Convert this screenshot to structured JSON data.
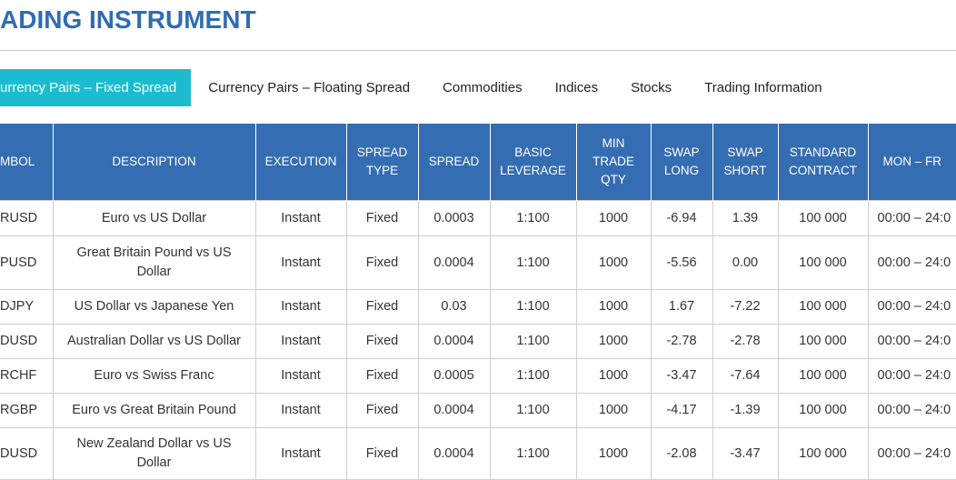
{
  "header": {
    "title": "ADING INSTRUMENT"
  },
  "tabs": [
    "urrency Pairs – Fixed Spread",
    "Currency Pairs – Floating Spread",
    "Commodities",
    "Indices",
    "Stocks",
    "Trading Information"
  ],
  "table": {
    "columns": [
      "MBOL",
      "DESCRIPTION",
      "EXECUTION",
      "SPREAD TYPE",
      "SPREAD",
      "BASIC LEVERAGE",
      "MIN TRADE QTY",
      "SWAP LONG",
      "SWAP SHORT",
      "STANDARD CONTRACT",
      "MON – FR"
    ],
    "rows": [
      [
        "RUSD",
        "Euro vs US Dollar",
        "Instant",
        "Fixed",
        "0.0003",
        "1:100",
        "1000",
        "-6.94",
        "1.39",
        "100 000",
        "00:00 – 24:0"
      ],
      [
        "PUSD",
        "Great Britain Pound vs US Dollar",
        "Instant",
        "Fixed",
        "0.0004",
        "1:100",
        "1000",
        "-5.56",
        "0.00",
        "100 000",
        "00:00 – 24:0"
      ],
      [
        "DJPY",
        "US Dollar vs Japanese Yen",
        "Instant",
        "Fixed",
        "0.03",
        "1:100",
        "1000",
        "1.67",
        "-7.22",
        "100 000",
        "00:00 – 24:0"
      ],
      [
        "DUSD",
        "Australian Dollar vs US Dollar",
        "Instant",
        "Fixed",
        "0.0004",
        "1:100",
        "1000",
        "-2.78",
        "-2.78",
        "100 000",
        "00:00 – 24:0"
      ],
      [
        "RCHF",
        "Euro vs Swiss Franc",
        "Instant",
        "Fixed",
        "0.0005",
        "1:100",
        "1000",
        "-3.47",
        "-7.64",
        "100 000",
        "00:00 – 24:0"
      ],
      [
        "RGBP",
        "Euro vs Great Britain Pound",
        "Instant",
        "Fixed",
        "0.0004",
        "1:100",
        "1000",
        "-4.17",
        "-1.39",
        "100 000",
        "00:00 – 24:0"
      ],
      [
        "DUSD",
        "New Zealand Dollar vs US Dollar",
        "Instant",
        "Fixed",
        "0.0004",
        "1:100",
        "1000",
        "-2.08",
        "-3.47",
        "100 000",
        "00:00 – 24:0"
      ]
    ]
  }
}
